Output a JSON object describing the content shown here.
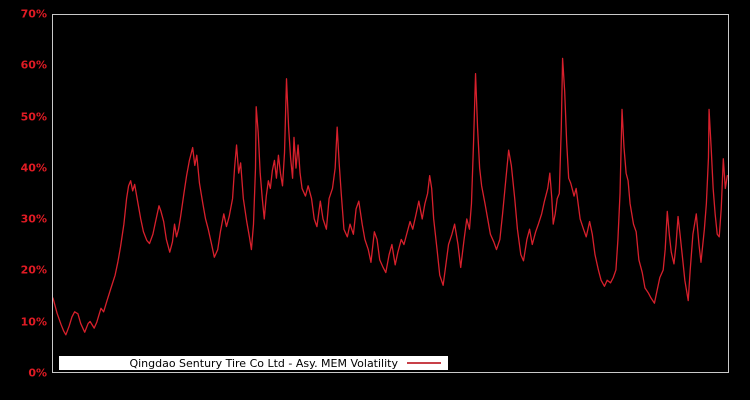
{
  "chart_data": {
    "type": "line",
    "title": "",
    "xlabel": "",
    "ylabel": "",
    "grid": false,
    "background_color": "#000000",
    "frame_color": "#c9c9c9",
    "tick_label_color": "#e01b24",
    "x_axis": {
      "tick_labels_visible": false
    },
    "y_axis": {
      "min": 0,
      "max": 70,
      "unit": "%",
      "ticks": [
        {
          "label": "0%",
          "value": 0
        },
        {
          "label": "10%",
          "value": 10
        },
        {
          "label": "20%",
          "value": 20
        },
        {
          "label": "30%",
          "value": 30
        },
        {
          "label": "40%",
          "value": 40
        },
        {
          "label": "50%",
          "value": 50
        },
        {
          "label": "60%",
          "value": 60
        },
        {
          "label": "70%",
          "value": 70
        }
      ]
    },
    "legend": {
      "position": "inside-bottom-left",
      "background": "#ffffff",
      "text_color": "#000000",
      "sample_line_color": "#c84048",
      "label": "Qingdao Sentury Tire Co Ltd - Asy. MEM Volatility"
    },
    "series": [
      {
        "name": "Qingdao Sentury Tire Co Ltd - Asy. MEM Volatility",
        "color": "#d7202c",
        "x_is_fraction_of_width": true,
        "y_unit": "percent",
        "points": [
          [
            0.0,
            14.5
          ],
          [
            0.006,
            11.5
          ],
          [
            0.012,
            9.3
          ],
          [
            0.016,
            8.0
          ],
          [
            0.019,
            7.3
          ],
          [
            0.024,
            9.0
          ],
          [
            0.028,
            10.8
          ],
          [
            0.032,
            11.8
          ],
          [
            0.037,
            11.4
          ],
          [
            0.041,
            9.5
          ],
          [
            0.047,
            7.8
          ],
          [
            0.052,
            9.5
          ],
          [
            0.055,
            9.9
          ],
          [
            0.061,
            8.6
          ],
          [
            0.065,
            9.8
          ],
          [
            0.071,
            12.5
          ],
          [
            0.075,
            11.8
          ],
          [
            0.08,
            14.0
          ],
          [
            0.086,
            16.5
          ],
          [
            0.092,
            19.0
          ],
          [
            0.096,
            21.5
          ],
          [
            0.1,
            24.5
          ],
          [
            0.105,
            29.0
          ],
          [
            0.109,
            34.0
          ],
          [
            0.112,
            36.5
          ],
          [
            0.115,
            37.5
          ],
          [
            0.118,
            35.5
          ],
          [
            0.121,
            36.8
          ],
          [
            0.126,
            33.0
          ],
          [
            0.13,
            30.0
          ],
          [
            0.134,
            27.5
          ],
          [
            0.139,
            25.8
          ],
          [
            0.143,
            25.2
          ],
          [
            0.148,
            27.0
          ],
          [
            0.152,
            29.5
          ],
          [
            0.157,
            32.6
          ],
          [
            0.16,
            31.5
          ],
          [
            0.164,
            29.5
          ],
          [
            0.168,
            26.0
          ],
          [
            0.173,
            23.5
          ],
          [
            0.177,
            25.5
          ],
          [
            0.18,
            29.0
          ],
          [
            0.183,
            26.5
          ],
          [
            0.186,
            28.0
          ],
          [
            0.189,
            30.5
          ],
          [
            0.194,
            35.0
          ],
          [
            0.198,
            38.5
          ],
          [
            0.202,
            41.5
          ],
          [
            0.207,
            44.0
          ],
          [
            0.21,
            40.5
          ],
          [
            0.213,
            42.5
          ],
          [
            0.217,
            37.0
          ],
          [
            0.222,
            33.0
          ],
          [
            0.226,
            30.0
          ],
          [
            0.23,
            28.0
          ],
          [
            0.235,
            25.0
          ],
          [
            0.239,
            22.5
          ],
          [
            0.244,
            24.0
          ],
          [
            0.248,
            27.5
          ],
          [
            0.253,
            31.0
          ],
          [
            0.257,
            28.5
          ],
          [
            0.261,
            30.5
          ],
          [
            0.266,
            34.0
          ],
          [
            0.269,
            40.0
          ],
          [
            0.272,
            44.5
          ],
          [
            0.275,
            39.0
          ],
          [
            0.278,
            41.0
          ],
          [
            0.282,
            34.0
          ],
          [
            0.287,
            29.5
          ],
          [
            0.291,
            26.5
          ],
          [
            0.294,
            24.0
          ],
          [
            0.297,
            29.0
          ],
          [
            0.3,
            40.0
          ],
          [
            0.301,
            52.0
          ],
          [
            0.304,
            47.0
          ],
          [
            0.307,
            39.0
          ],
          [
            0.31,
            34.0
          ],
          [
            0.313,
            30.0
          ],
          [
            0.316,
            34.5
          ],
          [
            0.319,
            37.5
          ],
          [
            0.322,
            36.0
          ],
          [
            0.325,
            39.5
          ],
          [
            0.328,
            41.5
          ],
          [
            0.331,
            38.0
          ],
          [
            0.334,
            42.5
          ],
          [
            0.337,
            39.0
          ],
          [
            0.34,
            36.5
          ],
          [
            0.343,
            43.0
          ],
          [
            0.346,
            57.5
          ],
          [
            0.349,
            48.0
          ],
          [
            0.352,
            42.0
          ],
          [
            0.355,
            38.0
          ],
          [
            0.357,
            46.0
          ],
          [
            0.36,
            40.0
          ],
          [
            0.363,
            44.5
          ],
          [
            0.366,
            39.0
          ],
          [
            0.369,
            36.0
          ],
          [
            0.374,
            34.5
          ],
          [
            0.378,
            36.5
          ],
          [
            0.383,
            34.0
          ],
          [
            0.387,
            30.0
          ],
          [
            0.391,
            28.5
          ],
          [
            0.396,
            33.5
          ],
          [
            0.4,
            30.0
          ],
          [
            0.405,
            28.0
          ],
          [
            0.409,
            34.0
          ],
          [
            0.414,
            36.0
          ],
          [
            0.418,
            40.0
          ],
          [
            0.421,
            48.0
          ],
          [
            0.424,
            41.0
          ],
          [
            0.427,
            35.0
          ],
          [
            0.431,
            28.0
          ],
          [
            0.436,
            26.5
          ],
          [
            0.44,
            29.0
          ],
          [
            0.445,
            27.0
          ],
          [
            0.449,
            32.0
          ],
          [
            0.453,
            33.5
          ],
          [
            0.458,
            29.0
          ],
          [
            0.462,
            26.0
          ],
          [
            0.467,
            24.0
          ],
          [
            0.471,
            21.5
          ],
          [
            0.476,
            27.5
          ],
          [
            0.48,
            26.0
          ],
          [
            0.484,
            22.0
          ],
          [
            0.489,
            20.5
          ],
          [
            0.493,
            19.5
          ],
          [
            0.498,
            23.0
          ],
          [
            0.502,
            25.0
          ],
          [
            0.507,
            21.0
          ],
          [
            0.511,
            23.5
          ],
          [
            0.516,
            26.0
          ],
          [
            0.52,
            25.0
          ],
          [
            0.524,
            27.0
          ],
          [
            0.529,
            29.5
          ],
          [
            0.533,
            28.0
          ],
          [
            0.538,
            31.0
          ],
          [
            0.542,
            33.5
          ],
          [
            0.547,
            30.0
          ],
          [
            0.551,
            33.0
          ],
          [
            0.555,
            35.0
          ],
          [
            0.558,
            38.5
          ],
          [
            0.561,
            36.0
          ],
          [
            0.564,
            30.0
          ],
          [
            0.569,
            24.0
          ],
          [
            0.573,
            19.0
          ],
          [
            0.578,
            17.0
          ],
          [
            0.582,
            21.0
          ],
          [
            0.586,
            25.0
          ],
          [
            0.591,
            27.0
          ],
          [
            0.595,
            29.0
          ],
          [
            0.6,
            25.0
          ],
          [
            0.604,
            20.5
          ],
          [
            0.609,
            26.0
          ],
          [
            0.613,
            30.0
          ],
          [
            0.617,
            28.0
          ],
          [
            0.62,
            33.0
          ],
          [
            0.623,
            45.0
          ],
          [
            0.626,
            58.5
          ],
          [
            0.629,
            48.0
          ],
          [
            0.632,
            40.0
          ],
          [
            0.635,
            36.5
          ],
          [
            0.64,
            33.0
          ],
          [
            0.644,
            30.0
          ],
          [
            0.648,
            27.0
          ],
          [
            0.653,
            25.5
          ],
          [
            0.657,
            24.0
          ],
          [
            0.662,
            26.0
          ],
          [
            0.666,
            31.0
          ],
          [
            0.671,
            38.0
          ],
          [
            0.675,
            43.5
          ],
          [
            0.679,
            40.5
          ],
          [
            0.684,
            34.0
          ],
          [
            0.688,
            28.0
          ],
          [
            0.693,
            23.0
          ],
          [
            0.697,
            21.8
          ],
          [
            0.702,
            26.0
          ],
          [
            0.706,
            28.0
          ],
          [
            0.71,
            25.0
          ],
          [
            0.715,
            27.5
          ],
          [
            0.719,
            29.0
          ],
          [
            0.724,
            31.0
          ],
          [
            0.728,
            33.5
          ],
          [
            0.733,
            36.0
          ],
          [
            0.736,
            39.0
          ],
          [
            0.739,
            34.0
          ],
          [
            0.741,
            29.0
          ],
          [
            0.744,
            31.0
          ],
          [
            0.747,
            34.0
          ],
          [
            0.75,
            35.0
          ],
          [
            0.753,
            48.0
          ],
          [
            0.755,
            61.5
          ],
          [
            0.758,
            55.0
          ],
          [
            0.761,
            45.0
          ],
          [
            0.764,
            38.0
          ],
          [
            0.767,
            37.0
          ],
          [
            0.77,
            35.5
          ],
          [
            0.772,
            34.5
          ],
          [
            0.775,
            36.0
          ],
          [
            0.778,
            33.0
          ],
          [
            0.781,
            30.0
          ],
          [
            0.786,
            28.0
          ],
          [
            0.79,
            26.5
          ],
          [
            0.795,
            29.5
          ],
          [
            0.799,
            27.0
          ],
          [
            0.803,
            23.0
          ],
          [
            0.808,
            20.0
          ],
          [
            0.812,
            18.0
          ],
          [
            0.817,
            16.8
          ],
          [
            0.821,
            18.0
          ],
          [
            0.826,
            17.5
          ],
          [
            0.83,
            18.5
          ],
          [
            0.834,
            20.0
          ],
          [
            0.837,
            26.0
          ],
          [
            0.84,
            35.0
          ],
          [
            0.843,
            51.5
          ],
          [
            0.846,
            44.0
          ],
          [
            0.849,
            39.0
          ],
          [
            0.852,
            37.5
          ],
          [
            0.855,
            33.0
          ],
          [
            0.86,
            29.0
          ],
          [
            0.864,
            27.5
          ],
          [
            0.868,
            22.0
          ],
          [
            0.873,
            19.5
          ],
          [
            0.877,
            16.5
          ],
          [
            0.882,
            15.5
          ],
          [
            0.886,
            14.5
          ],
          [
            0.891,
            13.5
          ],
          [
            0.895,
            16.0
          ],
          [
            0.899,
            18.5
          ],
          [
            0.904,
            20.0
          ],
          [
            0.907,
            24.0
          ],
          [
            0.91,
            31.5
          ],
          [
            0.913,
            27.0
          ],
          [
            0.916,
            23.5
          ],
          [
            0.92,
            21.2
          ],
          [
            0.923,
            25.0
          ],
          [
            0.926,
            30.5
          ],
          [
            0.929,
            27.0
          ],
          [
            0.933,
            22.0
          ],
          [
            0.936,
            18.0
          ],
          [
            0.941,
            14.0
          ],
          [
            0.944,
            20.0
          ],
          [
            0.948,
            27.0
          ],
          [
            0.953,
            31.0
          ],
          [
            0.957,
            25.0
          ],
          [
            0.96,
            21.5
          ],
          [
            0.965,
            28.0
          ],
          [
            0.968,
            33.0
          ],
          [
            0.971,
            42.0
          ],
          [
            0.972,
            51.5
          ],
          [
            0.975,
            44.0
          ],
          [
            0.978,
            36.0
          ],
          [
            0.981,
            31.0
          ],
          [
            0.984,
            27.0
          ],
          [
            0.987,
            26.5
          ],
          [
            0.99,
            32.0
          ],
          [
            0.993,
            41.8
          ],
          [
            0.996,
            36.0
          ],
          [
            0.999,
            38.5
          ]
        ]
      }
    ]
  }
}
